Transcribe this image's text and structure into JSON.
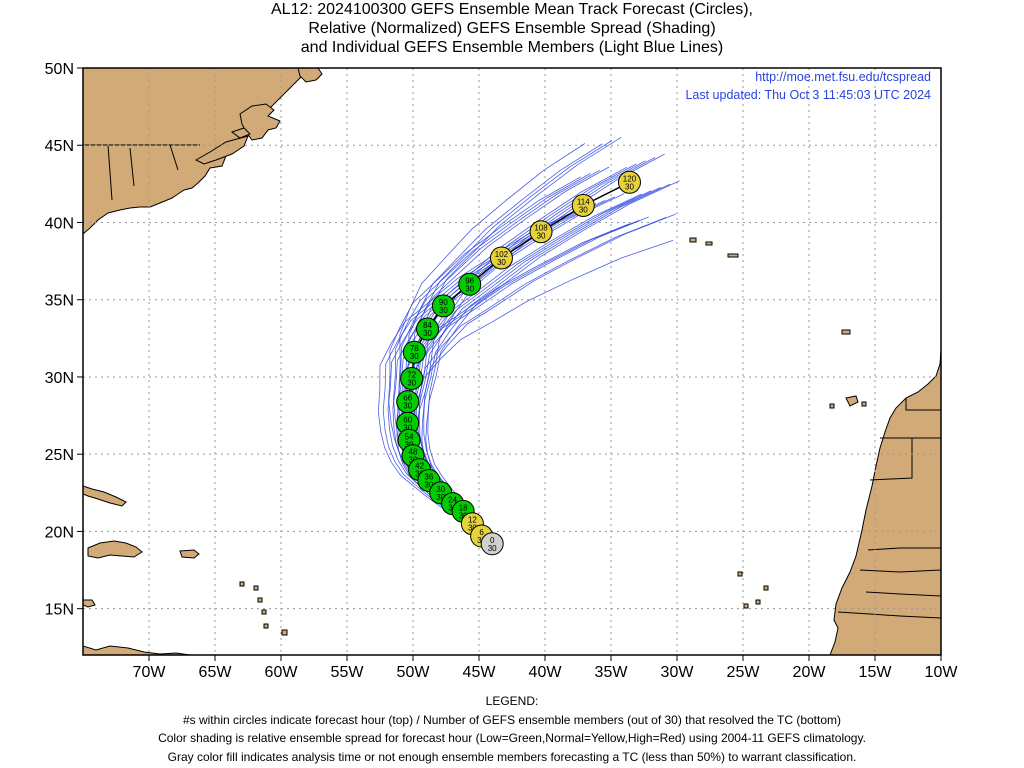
{
  "title_lines": [
    "AL12: 2024100300 GEFS Ensemble Mean Track Forecast (Circles),",
    "Relative (Normalized) GEFS Ensemble Spread (Shading)",
    "and Individual GEFS Ensemble Members (Light Blue Lines)"
  ],
  "source": {
    "url": "http://moe.met.fsu.edu/tcspread",
    "updated": "Last updated: Thu Oct 3 11:45:03 UTC 2024"
  },
  "legend": {
    "heading": "LEGEND:",
    "lines": [
      "#s within circles indicate forecast hour (top) / Number of GEFS ensemble members (out of 30) that resolved the TC (bottom)",
      "Color shading is relative ensemble spread for forecast hour (Low=Green,Normal=Yellow,High=Red) using 2004-11 GEFS climatology.",
      "Gray color fill indicates analysis time or not enough ensemble members forecasting a TC (less than 50%) to warrant classification."
    ]
  },
  "colors": {
    "land": "#d2aa78",
    "ocean": "#ffffff",
    "green": "#00cc00",
    "yellow": "#e6d23c",
    "gray": "#d0d0d0",
    "member_line": "#2a43e0",
    "mean_line": "#000000",
    "source_text": "#2a43e0",
    "grid": "#999999"
  },
  "chart_data": {
    "type": "scatter",
    "map": {
      "lon_range": [
        -75,
        -10
      ],
      "lat_range": [
        12,
        50
      ],
      "lon_ticks": [
        -70,
        -65,
        -60,
        -55,
        -50,
        -45,
        -40,
        -35,
        -30,
        -25,
        -20,
        -15,
        -10
      ],
      "lon_tick_labels": [
        "70W",
        "65W",
        "60W",
        "55W",
        "50W",
        "45W",
        "40W",
        "35W",
        "30W",
        "25W",
        "20W",
        "15W",
        "10W"
      ],
      "lat_ticks": [
        15,
        20,
        25,
        30,
        35,
        40,
        45,
        50
      ],
      "lat_tick_labels": [
        "15N",
        "20N",
        "25N",
        "30N",
        "35N",
        "40N",
        "45N",
        "50N"
      ],
      "grid": true
    },
    "mean_track": [
      {
        "hour": "0",
        "members": "30",
        "lon": -44.0,
        "lat": 19.2,
        "spread": "gray"
      },
      {
        "hour": "6",
        "members": "30",
        "lon": -44.8,
        "lat": 19.7,
        "spread": "yellow"
      },
      {
        "hour": "12",
        "members": "30",
        "lon": -45.5,
        "lat": 20.5,
        "spread": "yellow"
      },
      {
        "hour": "18",
        "members": "30",
        "lon": -46.2,
        "lat": 21.3,
        "spread": "green"
      },
      {
        "hour": "24",
        "members": "30",
        "lon": -47.0,
        "lat": 21.8,
        "spread": "green"
      },
      {
        "hour": "30",
        "members": "30",
        "lon": -47.9,
        "lat": 22.5,
        "spread": "green"
      },
      {
        "hour": "36",
        "members": "30",
        "lon": -48.8,
        "lat": 23.3,
        "spread": "green"
      },
      {
        "hour": "42",
        "members": "30",
        "lon": -49.5,
        "lat": 24.0,
        "spread": "green"
      },
      {
        "hour": "48",
        "members": "30",
        "lon": -50.0,
        "lat": 24.9,
        "spread": "green"
      },
      {
        "hour": "54",
        "members": "30",
        "lon": -50.3,
        "lat": 25.9,
        "spread": "green"
      },
      {
        "hour": "60",
        "members": "30",
        "lon": -50.4,
        "lat": 27.0,
        "spread": "green"
      },
      {
        "hour": "66",
        "members": "30",
        "lon": -50.4,
        "lat": 28.4,
        "spread": "green"
      },
      {
        "hour": "72",
        "members": "30",
        "lon": -50.1,
        "lat": 29.9,
        "spread": "green"
      },
      {
        "hour": "78",
        "members": "30",
        "lon": -49.9,
        "lat": 31.6,
        "spread": "green"
      },
      {
        "hour": "84",
        "members": "30",
        "lon": -48.9,
        "lat": 33.1,
        "spread": "green"
      },
      {
        "hour": "90",
        "members": "30",
        "lon": -47.7,
        "lat": 34.6,
        "spread": "green"
      },
      {
        "hour": "96",
        "members": "30",
        "lon": -45.7,
        "lat": 36.0,
        "spread": "green"
      },
      {
        "hour": "102",
        "members": "30",
        "lon": -43.3,
        "lat": 37.7,
        "spread": "yellow"
      },
      {
        "hour": "108",
        "members": "30",
        "lon": -40.3,
        "lat": 39.4,
        "spread": "yellow"
      },
      {
        "hour": "114",
        "members": "30",
        "lon": -37.1,
        "lat": 41.1,
        "spread": "yellow"
      },
      {
        "hour": "120",
        "members": "30",
        "lon": -33.6,
        "lat": 42.6,
        "spread": "yellow"
      }
    ]
  }
}
